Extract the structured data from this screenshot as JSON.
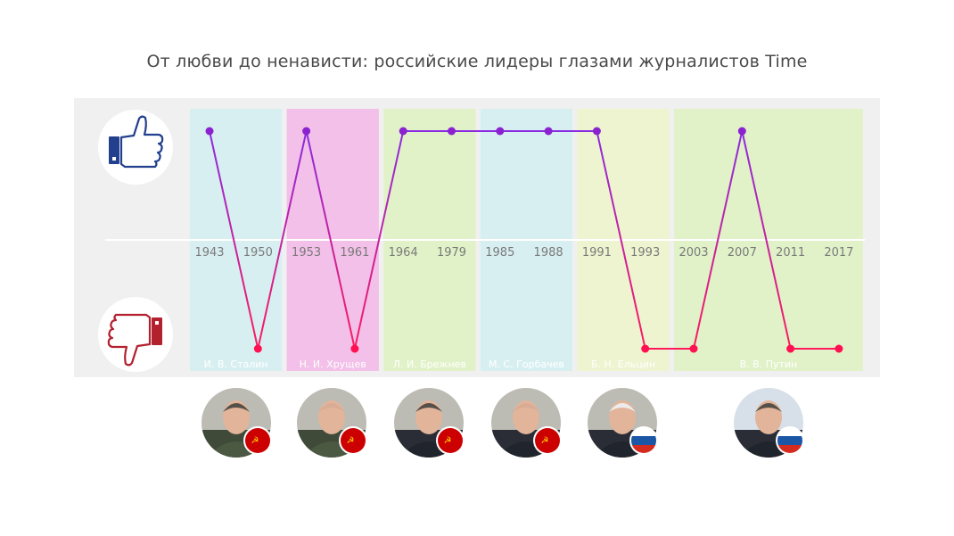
{
  "title": "От любви до ненависти: российские лидеры глазами журналистов Time",
  "colors": {
    "panel": "#f0f0f0",
    "axis": "#ffffff",
    "line_top": "#8a2be2",
    "line_bottom": "#ff1a5e",
    "dot_top": "#8a22d0",
    "dot_bottom": "#ff1050",
    "like_icon": "#23408e",
    "dislike_icon": "#b3202e",
    "soviet_flag": "#cc0000"
  },
  "icons": [
    "thumbs-up-icon",
    "thumbs-down-icon"
  ],
  "chart_data": {
    "type": "line",
    "x": [
      "1943",
      "1950",
      "1953",
      "1961",
      "1964",
      "1979",
      "1985",
      "1988",
      "1991",
      "1993",
      "2003",
      "2007",
      "2011",
      "2017"
    ],
    "values": [
      1,
      -1,
      1,
      -1,
      1,
      1,
      1,
      1,
      1,
      -1,
      -1,
      1,
      -1,
      -1
    ],
    "y_categories": {
      "1": "like",
      "-1": "dislike"
    },
    "leaders": [
      {
        "name": "И. В. Сталин",
        "color": "#d8eff2",
        "start": 0,
        "end": 1,
        "flag": "soviet"
      },
      {
        "name": "Н. И. Хрущев",
        "color": "#f2c0e8",
        "start": 2,
        "end": 3,
        "flag": "soviet"
      },
      {
        "name": "Л. И. Брежнев",
        "color": "#e1f2c8",
        "start": 4,
        "end": 5,
        "flag": "soviet"
      },
      {
        "name": "М. С. Горбачев",
        "color": "#d8eff2",
        "start": 6,
        "end": 7,
        "flag": "soviet"
      },
      {
        "name": "Б. Н. Ельцин",
        "color": "#eef4cf",
        "start": 8,
        "end": 9,
        "flag": "russia"
      },
      {
        "name": "В. В. Путин",
        "color": "#e1f2c8",
        "start": 10,
        "end": 13,
        "flag": "russia"
      }
    ]
  }
}
